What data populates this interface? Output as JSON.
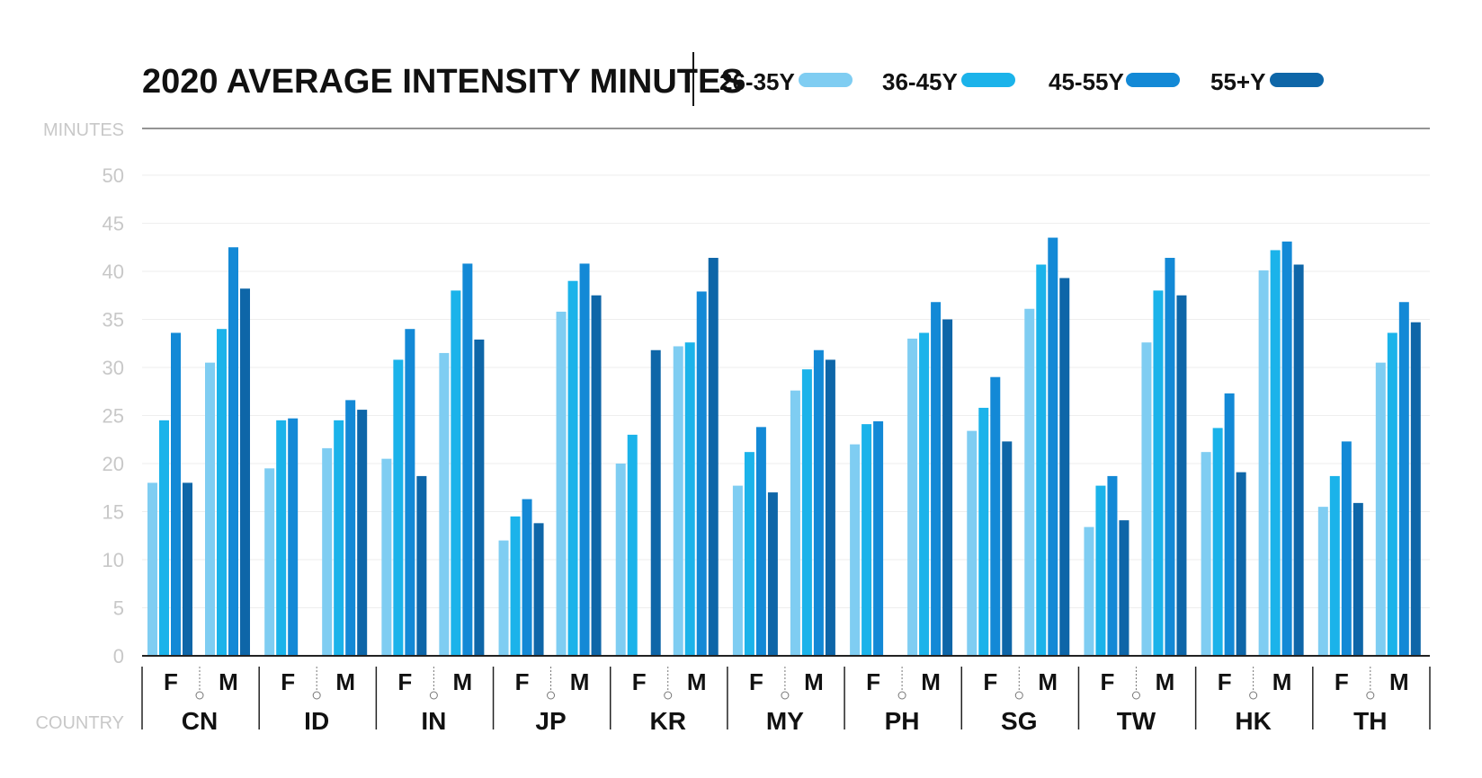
{
  "chart_data": {
    "type": "bar",
    "title": "2020 AVERAGE INTENSITY MINUTES",
    "ylabel": "MINUTES",
    "xlabel": "COUNTRY",
    "ylim": [
      0,
      50
    ],
    "y_ticks": [
      "0",
      "5",
      "10",
      "15",
      "20",
      "25",
      "30",
      "35",
      "40",
      "45",
      "50"
    ],
    "grid": true,
    "legend_position": "top",
    "groups": [
      "F",
      "M"
    ],
    "categories": [
      "CN",
      "ID",
      "IN",
      "JP",
      "KR",
      "MY",
      "PH",
      "SG",
      "TW",
      "HK",
      "TH"
    ],
    "series": [
      {
        "name": "26-35Y",
        "color": "#7fcdf2",
        "F": [
          18,
          19.5,
          20.5,
          12,
          20,
          17.7,
          22,
          23.4,
          13.4,
          21.2,
          15.5
        ],
        "M": [
          30.5,
          21.6,
          31.5,
          35.8,
          32.2,
          27.6,
          33,
          36.1,
          32.6,
          40.1,
          30.5
        ]
      },
      {
        "name": "36-45Y",
        "color": "#1bb3ea",
        "F": [
          24.5,
          24.5,
          30.8,
          14.5,
          23,
          21.2,
          24.1,
          25.8,
          17.7,
          23.7,
          18.7
        ],
        "M": [
          34,
          24.5,
          38,
          39,
          32.6,
          29.8,
          33.6,
          40.7,
          38,
          42.2,
          33.6
        ]
      },
      {
        "name": "45-55Y",
        "color": "#1389d6",
        "F": [
          33.6,
          24.7,
          34,
          16.3,
          null,
          23.8,
          24.4,
          29,
          18.7,
          27.3,
          22.3
        ],
        "M": [
          42.5,
          26.6,
          40.8,
          40.8,
          37.9,
          31.8,
          36.8,
          43.5,
          41.4,
          43.1,
          36.8
        ]
      },
      {
        "name": "55+Y",
        "color": "#0e66a8",
        "F": [
          18,
          null,
          18.7,
          13.8,
          31.8,
          17,
          null,
          22.3,
          14.1,
          19.1,
          15.9
        ],
        "M": [
          38.2,
          25.6,
          32.9,
          37.5,
          41.4,
          30.8,
          35,
          39.3,
          37.5,
          40.7,
          34.7
        ]
      }
    ]
  }
}
